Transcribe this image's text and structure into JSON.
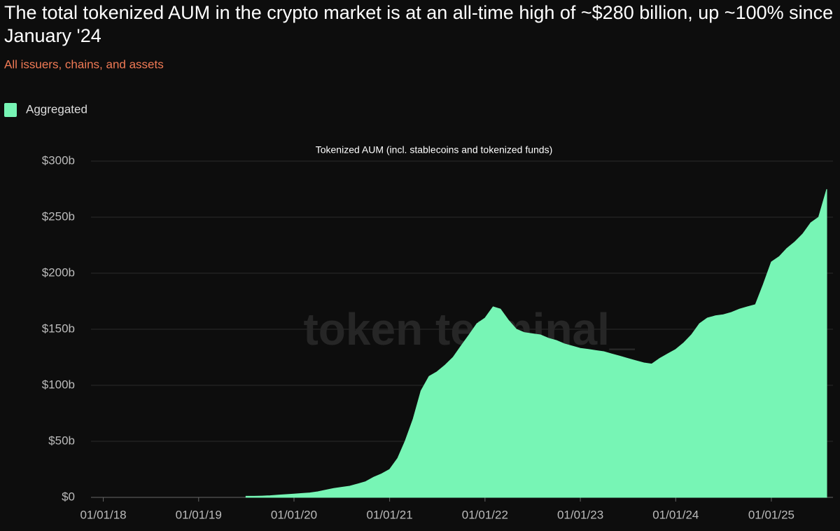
{
  "chart_data": {
    "type": "area",
    "title": "The total tokenized AUM in the crypto market is at an all-time high of ~$280 billion, up ~100% since January '24",
    "subtitle": "All issuers, chains, and assets",
    "chart_title": "Tokenized AUM (incl. stablecoins and tokenized funds)",
    "watermark": "token terminal_",
    "legend": "top-left",
    "grid": true,
    "xlim": [
      "2017-11-15",
      "2025-08-25"
    ],
    "xticks": [
      {
        "value": "2018-01-01",
        "label": "01/01/18"
      },
      {
        "value": "2019-01-01",
        "label": "01/01/19"
      },
      {
        "value": "2020-01-01",
        "label": "01/01/20"
      },
      {
        "value": "2021-01-01",
        "label": "01/01/21"
      },
      {
        "value": "2022-01-01",
        "label": "01/01/22"
      },
      {
        "value": "2023-01-01",
        "label": "01/01/23"
      },
      {
        "value": "2024-01-01",
        "label": "01/01/24"
      },
      {
        "value": "2025-01-01",
        "label": "01/01/25"
      }
    ],
    "ylim": [
      0,
      300
    ],
    "yticks": [
      {
        "value": 0,
        "label": "$0"
      },
      {
        "value": 50,
        "label": "$50b"
      },
      {
        "value": 100,
        "label": "$100b"
      },
      {
        "value": 150,
        "label": "$150b"
      },
      {
        "value": 200,
        "label": "$200b"
      },
      {
        "value": 250,
        "label": "$250b"
      },
      {
        "value": 300,
        "label": "$300b"
      }
    ],
    "x": [
      "2019-07-01",
      "2019-08-01",
      "2019-09-01",
      "2019-10-01",
      "2019-11-01",
      "2019-12-01",
      "2020-01-01",
      "2020-02-01",
      "2020-03-01",
      "2020-04-01",
      "2020-05-01",
      "2020-06-01",
      "2020-07-01",
      "2020-08-01",
      "2020-09-01",
      "2020-10-01",
      "2020-11-01",
      "2020-12-01",
      "2021-01-01",
      "2021-02-01",
      "2021-03-01",
      "2021-04-01",
      "2021-05-01",
      "2021-06-01",
      "2021-07-01",
      "2021-08-01",
      "2021-09-01",
      "2021-10-01",
      "2021-11-01",
      "2021-12-01",
      "2022-01-01",
      "2022-02-01",
      "2022-03-01",
      "2022-04-01",
      "2022-05-01",
      "2022-06-01",
      "2022-07-01",
      "2022-08-01",
      "2022-09-01",
      "2022-10-01",
      "2022-11-01",
      "2022-12-01",
      "2023-01-01",
      "2023-02-01",
      "2023-03-01",
      "2023-04-01",
      "2023-05-01",
      "2023-06-01",
      "2023-07-01",
      "2023-08-01",
      "2023-09-01",
      "2023-10-01",
      "2023-11-01",
      "2023-12-01",
      "2024-01-01",
      "2024-02-01",
      "2024-03-01",
      "2024-04-01",
      "2024-05-01",
      "2024-06-01",
      "2024-07-01",
      "2024-08-01",
      "2024-09-01",
      "2024-10-01",
      "2024-11-01",
      "2024-12-01",
      "2025-01-01",
      "2025-02-01",
      "2025-03-01",
      "2025-04-01",
      "2025-05-01",
      "2025-06-01",
      "2025-07-01",
      "2025-08-01"
    ],
    "series": [
      {
        "name": "Aggregated",
        "color": "#77f5b5",
        "values": [
          1,
          1,
          1.2,
          1.5,
          2,
          2.5,
          3,
          3.5,
          4,
          5,
          6.5,
          8,
          9,
          10,
          12,
          14,
          18,
          21,
          25,
          35,
          50,
          70,
          95,
          108,
          112,
          118,
          125,
          135,
          145,
          155,
          160,
          170,
          168,
          158,
          150,
          147,
          146,
          145,
          142,
          140,
          137,
          135,
          133,
          132,
          131,
          130,
          128,
          126,
          124,
          122,
          120,
          119,
          124,
          128,
          132,
          138,
          145,
          155,
          160,
          162,
          163,
          165,
          168,
          170,
          172,
          190,
          210,
          215,
          222,
          228,
          235,
          245,
          250,
          275
        ]
      }
    ]
  }
}
